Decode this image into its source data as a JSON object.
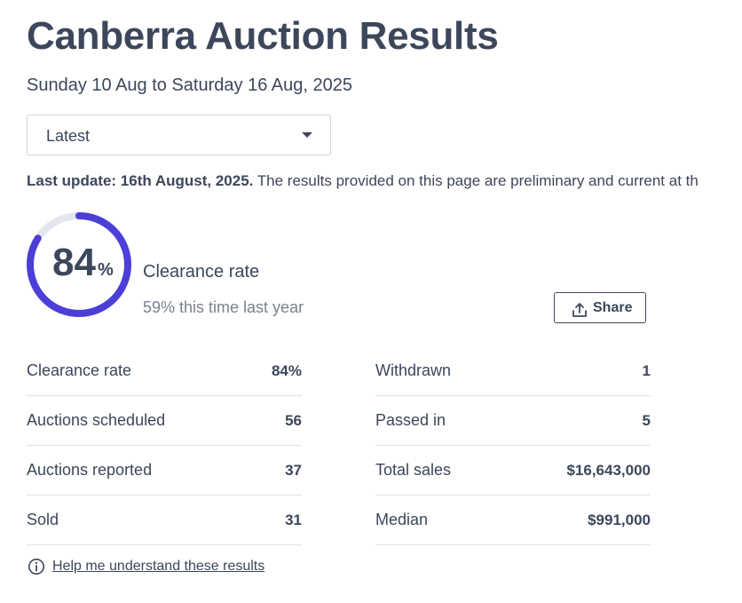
{
  "header": {
    "title": "Canberra Auction Results",
    "date_range": "Sunday 10 Aug to Saturday 16 Aug, 2025"
  },
  "filter": {
    "selected": "Latest"
  },
  "update": {
    "label": "Last update: 16th August, 2025.",
    "text": " The results provided on this page are preliminary and current at th"
  },
  "summary": {
    "clearance_value": "84",
    "clearance_unit": "%",
    "clearance_fraction": 0.84,
    "clearance_label": "Clearance rate",
    "last_year": "59% this time last year",
    "share_label": "Share",
    "ring_color": "#4b3fd8",
    "ring_track_color": "#e4e6ee"
  },
  "stats_left": [
    {
      "label": "Clearance rate",
      "value": "84%"
    },
    {
      "label": "Auctions scheduled",
      "value": "56"
    },
    {
      "label": "Auctions reported",
      "value": "37"
    },
    {
      "label": "Sold",
      "value": "31"
    }
  ],
  "stats_right": [
    {
      "label": "Withdrawn",
      "value": "1"
    },
    {
      "label": "Passed in",
      "value": "5"
    },
    {
      "label": "Total sales",
      "value": "$16,643,000"
    },
    {
      "label": "Median",
      "value": "$991,000"
    }
  ],
  "help": {
    "link_text": "Help me understand these results",
    "icon": "info-icon"
  }
}
